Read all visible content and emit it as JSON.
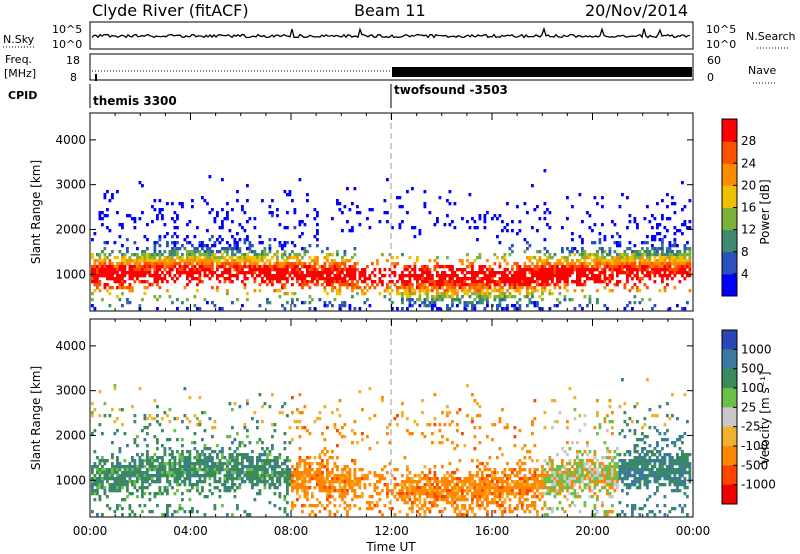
{
  "header": {
    "site": "Clyde River (fitACF)",
    "beam": "Beam 11",
    "date": "20/Nov/2014"
  },
  "panels": {
    "nsky_label": "N.Sky",
    "nsky_ticks": [
      "10^5",
      "10^0"
    ],
    "nsearch_label": "N.Search",
    "nsearch_ticks": [
      "10^5",
      "10^0"
    ],
    "freq_label": "Freq.",
    "freq_unit": "[MHz]",
    "freq_ticks": [
      "18",
      "8"
    ],
    "nave_label": "Nave",
    "nave_ticks": [
      "60",
      "0"
    ],
    "cpid_label": "CPID",
    "cpid_segments": [
      {
        "name": "themis 3300",
        "start": "00:00"
      },
      {
        "name": "twofsound -3503",
        "start": "12:00"
      }
    ]
  },
  "axes": {
    "xlabel": "Time UT",
    "ylabel": "Slant Range [km]",
    "xticks": [
      "00:00",
      "04:00",
      "08:00",
      "12:00",
      "16:00",
      "20:00",
      "00:00"
    ],
    "yticks": [
      "1000",
      "2000",
      "3000",
      "4000"
    ]
  },
  "colorbars": {
    "power": {
      "label": "Power [dB]",
      "ticks": [
        "4",
        "8",
        "12",
        "16",
        "20",
        "24",
        "28"
      ],
      "colors": [
        "#0000ff",
        "#2a52be",
        "#3f8a6e",
        "#7ab23a",
        "#f0c000",
        "#ff8c00",
        "#ff5000",
        "#ff0000"
      ]
    },
    "velocity": {
      "label": "Velocity [m s⁻¹]",
      "ticks": [
        "1000",
        "500",
        "100",
        "25",
        "-25",
        "-100",
        "-500",
        "-1000"
      ],
      "colors": [
        "#2a47b8",
        "#3a7aa0",
        "#3a8a5e",
        "#6cc04a",
        "#c8c8c8",
        "#f0b030",
        "#ff8800",
        "#ff4400",
        "#ee0000"
      ]
    }
  },
  "chart_data": [
    {
      "type": "heatmap",
      "title": "Power",
      "xlabel": "Time UT",
      "ylabel": "Slant Range [km]",
      "xlim": [
        "00:00",
        "00:00"
      ],
      "ylim": [
        180,
        4600
      ],
      "colorbar": {
        "label": "Power [dB]",
        "range": [
          2,
          32
        ]
      },
      "description_values": {
        "main_echo_band_km": [
          600,
          1700
        ],
        "dominant_power_db": 28
      }
    },
    {
      "type": "heatmap",
      "title": "Velocity",
      "xlabel": "Time UT",
      "ylabel": "Slant Range [km]",
      "xlim": [
        "00:00",
        "00:00"
      ],
      "ylim": [
        180,
        4600
      ],
      "colorbar": {
        "label": "Velocity [m s⁻¹]",
        "range": [
          -1000,
          1000
        ]
      },
      "description_values": {
        "main_echo_band_km": [
          600,
          1700
        ]
      }
    }
  ]
}
